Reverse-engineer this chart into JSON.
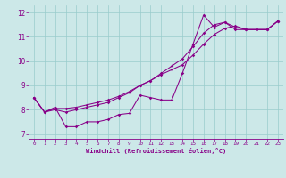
{
  "title": "Windchill (Refroidissement éolien,°C)",
  "bg_color": "#cce8e8",
  "line_color": "#880088",
  "grid_color": "#99cccc",
  "xlim": [
    -0.5,
    23.5
  ],
  "ylim": [
    6.8,
    12.3
  ],
  "yticks": [
    7,
    8,
    9,
    10,
    11,
    12
  ],
  "xticks": [
    0,
    1,
    2,
    3,
    4,
    5,
    6,
    7,
    8,
    9,
    10,
    11,
    12,
    13,
    14,
    15,
    16,
    17,
    18,
    19,
    20,
    21,
    22,
    23
  ],
  "line1_x": [
    0,
    1,
    2,
    3,
    4,
    5,
    6,
    7,
    8,
    9,
    10,
    11,
    12,
    13,
    14,
    15,
    16,
    17,
    18,
    19,
    20,
    21,
    22,
    23
  ],
  "line1_y": [
    8.5,
    7.9,
    8.1,
    7.3,
    7.3,
    7.5,
    7.5,
    7.6,
    7.8,
    7.85,
    8.6,
    8.5,
    8.4,
    8.4,
    9.5,
    10.7,
    11.9,
    11.4,
    11.6,
    11.3,
    11.3,
    11.3,
    11.3,
    11.65
  ],
  "line2_x": [
    0,
    1,
    2,
    3,
    4,
    5,
    6,
    7,
    8,
    9,
    10,
    11,
    12,
    13,
    14,
    15,
    16,
    17,
    18,
    19,
    20,
    21,
    22,
    23
  ],
  "line2_y": [
    8.5,
    7.9,
    8.05,
    8.05,
    8.1,
    8.2,
    8.3,
    8.4,
    8.55,
    8.75,
    9.0,
    9.2,
    9.45,
    9.65,
    9.85,
    10.25,
    10.7,
    11.1,
    11.35,
    11.45,
    11.3,
    11.3,
    11.3,
    11.65
  ],
  "line3_x": [
    0,
    1,
    2,
    3,
    4,
    5,
    6,
    7,
    8,
    9,
    10,
    11,
    12,
    13,
    14,
    15,
    16,
    17,
    18,
    19,
    20,
    21,
    22,
    23
  ],
  "line3_y": [
    8.5,
    7.9,
    8.0,
    7.9,
    8.0,
    8.1,
    8.2,
    8.3,
    8.5,
    8.7,
    9.0,
    9.2,
    9.5,
    9.8,
    10.1,
    10.6,
    11.15,
    11.5,
    11.6,
    11.4,
    11.3,
    11.3,
    11.3,
    11.65
  ]
}
